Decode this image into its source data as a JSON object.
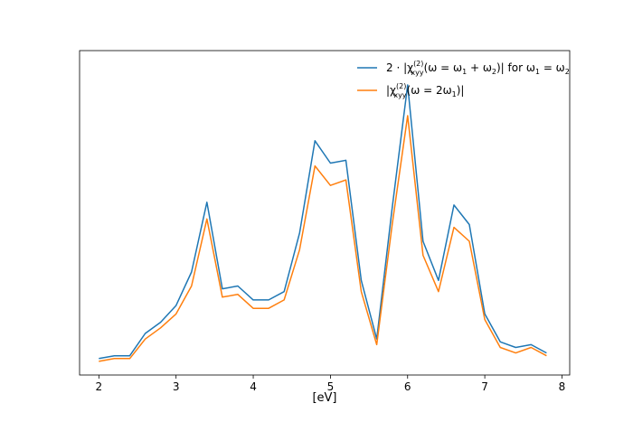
{
  "chart_data": {
    "type": "line",
    "title": "",
    "xlabel": "[eV]",
    "ylabel": "",
    "xlim": [
      1.75,
      8.1
    ],
    "ylim": [
      0,
      1.0
    ],
    "x_ticks": [
      2,
      3,
      4,
      5,
      6,
      7,
      8
    ],
    "x_tick_labels": [
      "2",
      "3",
      "4",
      "5",
      "6",
      "7",
      "8"
    ],
    "y_ticks_visible": false,
    "grid": false,
    "legend_position": "top-right",
    "x": [
      2.0,
      2.2,
      2.4,
      2.6,
      2.8,
      3.0,
      3.2,
      3.4,
      3.6,
      3.8,
      4.0,
      4.2,
      4.4,
      4.6,
      4.8,
      5.0,
      5.2,
      5.4,
      5.6,
      5.8,
      6.0,
      6.2,
      6.4,
      6.6,
      6.8,
      7.0,
      7.2,
      7.4,
      7.6,
      7.8
    ],
    "series": [
      {
        "name": "2·|χ(2)xyy(ω = ω1 + ω2)| for ω1 = ω2",
        "color": "#1f77b4",
        "values": [
          0.02,
          0.03,
          0.03,
          0.11,
          0.15,
          0.21,
          0.33,
          0.58,
          0.27,
          0.28,
          0.23,
          0.23,
          0.26,
          0.47,
          0.8,
          0.72,
          0.73,
          0.3,
          0.09,
          0.56,
          1.0,
          0.44,
          0.3,
          0.57,
          0.5,
          0.18,
          0.08,
          0.06,
          0.07,
          0.04
        ]
      },
      {
        "name": "|χ(2)xyy(ω = 2ω1)|",
        "color": "#ff7f0e",
        "values": [
          0.01,
          0.02,
          0.02,
          0.09,
          0.13,
          0.18,
          0.28,
          0.52,
          0.24,
          0.25,
          0.2,
          0.2,
          0.23,
          0.41,
          0.71,
          0.64,
          0.66,
          0.26,
          0.07,
          0.5,
          0.89,
          0.39,
          0.26,
          0.49,
          0.44,
          0.16,
          0.06,
          0.04,
          0.06,
          0.03
        ]
      }
    ]
  },
  "legend": {
    "series1": {
      "prefix": "2 · |χ",
      "sup": "(2)",
      "sub": "xyy",
      "body": "(ω = ω",
      "s1": "1",
      "mid": " + ω",
      "s2": "2",
      "close": ")| for ω",
      "s3": "1",
      "eq": " = ω",
      "s4": "2"
    },
    "series2": {
      "prefix": "|χ",
      "sup": "(2)",
      "sub": "xyy",
      "body": "(ω = 2ω",
      "s1": "1",
      "close": ")|"
    }
  }
}
